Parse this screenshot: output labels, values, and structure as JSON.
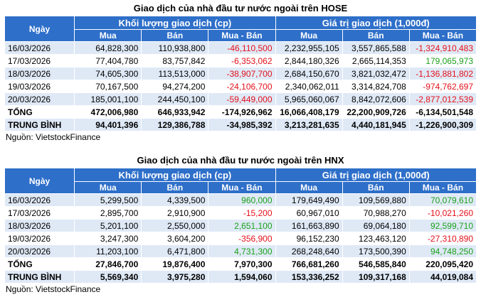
{
  "hose": {
    "title": "Giao dịch của nhà đầu tư nước ngoài trên HOSE",
    "head_day": "Ngày",
    "head_volume": "Khối lượng giao dịch (cp)",
    "head_value": "Giá trị giao dịch (1,000đ)",
    "sub": [
      "Mua",
      "Bán",
      "Mua - Bán",
      "Mua",
      "Bán",
      "Mua - Bán"
    ],
    "rows": [
      {
        "day": "16/03/2026",
        "cells": [
          "64,828,300",
          "110,938,800",
          "-46,110,500",
          "2,232,955,105",
          "3,557,865,588",
          "-1,324,910,483"
        ]
      },
      {
        "day": "17/03/2026",
        "cells": [
          "77,404,780",
          "83,757,842",
          "-6,353,062",
          "2,844,180,326",
          "2,665,114,353",
          "179,065,973"
        ]
      },
      {
        "day": "18/03/2026",
        "cells": [
          "74,605,300",
          "113,513,000",
          "-38,907,700",
          "2,684,150,670",
          "3,821,032,472",
          "-1,136,881,802"
        ]
      },
      {
        "day": "19/03/2026",
        "cells": [
          "70,167,500",
          "94,274,200",
          "-24,106,700",
          "2,340,062,011",
          "3,314,824,708",
          "-974,762,697"
        ]
      },
      {
        "day": "20/03/2026",
        "cells": [
          "185,001,100",
          "244,450,100",
          "-59,449,000",
          "5,965,060,067",
          "8,842,072,606",
          "-2,877,012,539"
        ]
      }
    ],
    "total": {
      "label": "TỔNG",
      "cells": [
        "472,006,980",
        "646,933,942",
        "-174,926,962",
        "16,066,408,179",
        "22,200,909,726",
        "-6,134,501,548"
      ]
    },
    "avg": {
      "label": "TRUNG BÌNH",
      "cells": [
        "94,401,396",
        "129,386,788",
        "-34,985,392",
        "3,213,281,635",
        "4,440,181,945",
        "-1,226,900,309"
      ]
    },
    "source": "Nguồn: VietstockFinance"
  },
  "hnx": {
    "title": "Giao dịch của nhà đầu tư nước ngoài trên HNX",
    "head_day": "Ngày",
    "head_volume": "Khối lượng giao dịch (cp)",
    "head_value": "Giá trị giao dịch (1,000đ)",
    "sub": [
      "Mua",
      "Bán",
      "Mua - Bán",
      "Mua",
      "Bán",
      "Mua - Bán"
    ],
    "rows": [
      {
        "day": "16/03/2026",
        "cells": [
          "5,299,500",
          "4,339,500",
          "960,000",
          "179,649,490",
          "109,569,880",
          "70,079,610"
        ]
      },
      {
        "day": "17/03/2026",
        "cells": [
          "2,895,700",
          "2,910,900",
          "-15,200",
          "60,967,010",
          "70,988,270",
          "-10,021,260"
        ]
      },
      {
        "day": "18/03/2026",
        "cells": [
          "5,201,100",
          "2,550,000",
          "2,651,100",
          "161,663,890",
          "69,064,180",
          "92,599,710"
        ]
      },
      {
        "day": "19/03/2026",
        "cells": [
          "3,247,300",
          "3,604,200",
          "-356,900",
          "96,152,230",
          "123,463,120",
          "-27,310,890"
        ]
      },
      {
        "day": "20/03/2026",
        "cells": [
          "11,203,100",
          "6,471,800",
          "4,731,300",
          "268,248,640",
          "173,500,390",
          "94,748,250"
        ]
      }
    ],
    "total": {
      "label": "TỔNG",
      "cells": [
        "27,846,700",
        "19,876,400",
        "7,970,300",
        "766,681,260",
        "546,585,840",
        "220,095,420"
      ]
    },
    "avg": {
      "label": "TRUNG BÌNH",
      "cells": [
        "5,569,340",
        "3,975,280",
        "1,594,060",
        "153,336,252",
        "109,317,168",
        "44,019,084"
      ]
    },
    "source": "Nguồn: VietstockFinance"
  },
  "colors": {
    "header_bg": "#2e6fc9",
    "stripe": "#dfe9f6",
    "negative": "#e4101a",
    "positive": "#1aa01a"
  }
}
